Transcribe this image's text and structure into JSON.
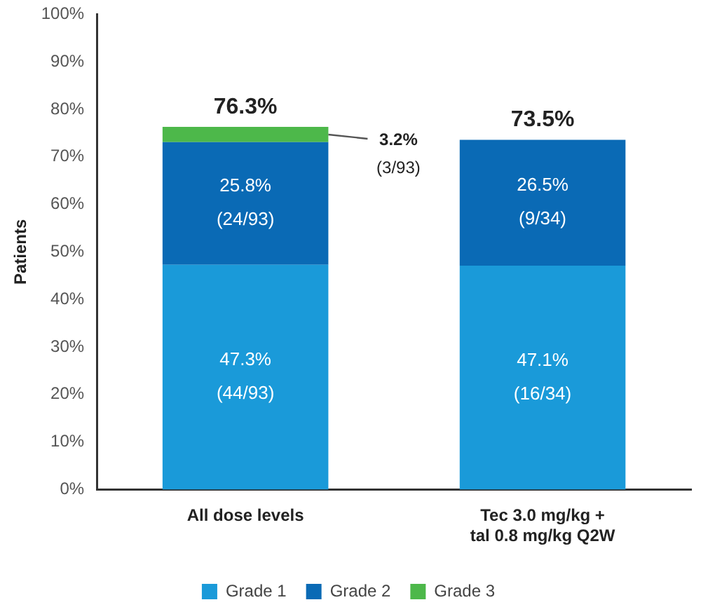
{
  "chart_data": {
    "type": "bar",
    "stacked": true,
    "ylabel": "Patients",
    "categories": [
      "All dose levels",
      "Tec 3.0 mg/kg +\ntal 0.8 mg/kg Q2W"
    ],
    "series": [
      {
        "name": "Grade 1",
        "color": "#1a9ad9",
        "values": [
          47.3,
          47.1
        ],
        "value_labels": [
          "47.3%\n(44/93)",
          "47.1%\n(16/34)"
        ]
      },
      {
        "name": "Grade 2",
        "color": "#0a6ab5",
        "values": [
          25.8,
          26.5
        ],
        "value_labels": [
          "25.8%\n(24/93)",
          "26.5%\n(9/34)"
        ]
      },
      {
        "name": "Grade 3",
        "color": "#4db84a",
        "values": [
          3.2,
          null
        ],
        "value_labels": [
          "3.2%\n(3/93)",
          null
        ]
      }
    ],
    "totals": [
      "76.3%",
      "73.5%"
    ],
    "ylim": [
      0,
      100
    ],
    "yticks": [
      {
        "value": 0,
        "label": "0%"
      },
      {
        "value": 10,
        "label": "10%"
      },
      {
        "value": 20,
        "label": "20%"
      },
      {
        "value": 30,
        "label": "30%"
      },
      {
        "value": 40,
        "label": "40%"
      },
      {
        "value": 50,
        "label": "50%"
      },
      {
        "value": 60,
        "label": "60%"
      },
      {
        "value": 70,
        "label": "70%"
      },
      {
        "value": 80,
        "label": "80%"
      },
      {
        "value": 90,
        "label": "90%"
      },
      {
        "value": 100,
        "label": "100%"
      }
    ],
    "grid": false,
    "legend": "bottom"
  }
}
